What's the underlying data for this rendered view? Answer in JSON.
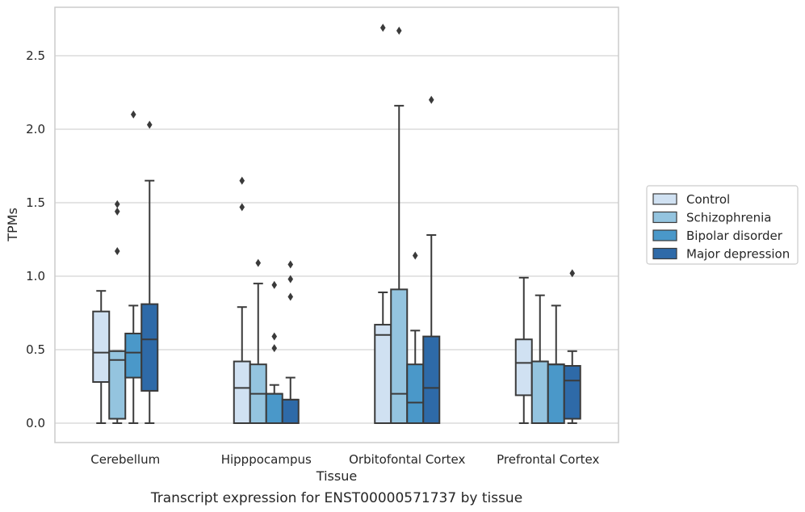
{
  "chart_data": {
    "type": "box",
    "xlabel": "Tissue",
    "ylabel": "TPMs",
    "caption": "Transcript expression for ENST00000571737 by tissue",
    "ylim": [
      -0.13,
      2.85
    ],
    "yticks": [
      "0.0",
      "0.5",
      "1.0",
      "1.5",
      "2.0",
      "2.5"
    ],
    "grid": "horizontal",
    "legend_position": "right",
    "categories": [
      "Cerebellum",
      "Hipppocampus",
      "Orbitofontal Cortex",
      "Prefrontal Cortex"
    ],
    "series": [
      {
        "name": "Control",
        "color": "#d0e1f2",
        "boxes": [
          {
            "whislo": 0.0,
            "q1": 0.28,
            "med": 0.48,
            "q3": 0.76,
            "whishi": 0.9,
            "fliers": []
          },
          {
            "whislo": 0.0,
            "q1": 0.0,
            "med": 0.24,
            "q3": 0.42,
            "whishi": 0.79,
            "fliers": [
              1.47,
              1.65
            ]
          },
          {
            "whislo": 0.0,
            "q1": 0.0,
            "med": 0.6,
            "q3": 0.67,
            "whishi": 0.89,
            "fliers": [
              2.69
            ]
          },
          {
            "whislo": 0.0,
            "q1": 0.19,
            "med": 0.41,
            "q3": 0.57,
            "whishi": 0.99,
            "fliers": []
          }
        ]
      },
      {
        "name": "Schizophrenia",
        "color": "#94c4df",
        "boxes": [
          {
            "whislo": 0.0,
            "q1": 0.03,
            "med": 0.43,
            "q3": 0.49,
            "whishi": 0.49,
            "fliers": [
              1.17,
              1.44,
              1.49
            ]
          },
          {
            "whislo": 0.0,
            "q1": 0.0,
            "med": 0.2,
            "q3": 0.4,
            "whishi": 0.95,
            "fliers": [
              1.09
            ]
          },
          {
            "whislo": 0.0,
            "q1": 0.0,
            "med": 0.2,
            "q3": 0.91,
            "whishi": 2.16,
            "fliers": [
              2.67
            ]
          },
          {
            "whislo": 0.0,
            "q1": 0.0,
            "med": 0.42,
            "q3": 0.42,
            "whishi": 0.87,
            "fliers": []
          }
        ]
      },
      {
        "name": "Bipolar disorder",
        "color": "#4a98c9",
        "boxes": [
          {
            "whislo": 0.0,
            "q1": 0.31,
            "med": 0.48,
            "q3": 0.61,
            "whishi": 0.8,
            "fliers": [
              2.1
            ]
          },
          {
            "whislo": 0.0,
            "q1": 0.0,
            "med": 0.2,
            "q3": 0.2,
            "whishi": 0.26,
            "fliers": [
              0.51,
              0.59,
              0.94
            ]
          },
          {
            "whislo": 0.0,
            "q1": 0.0,
            "med": 0.14,
            "q3": 0.4,
            "whishi": 0.63,
            "fliers": [
              1.14
            ]
          },
          {
            "whislo": 0.0,
            "q1": 0.0,
            "med": 0.4,
            "q3": 0.4,
            "whishi": 0.8,
            "fliers": []
          }
        ]
      },
      {
        "name": "Major depression",
        "color": "#2e6aa8",
        "boxes": [
          {
            "whislo": 0.0,
            "q1": 0.22,
            "med": 0.57,
            "q3": 0.81,
            "whishi": 1.65,
            "fliers": [
              2.03
            ]
          },
          {
            "whislo": 0.0,
            "q1": 0.0,
            "med": 0.16,
            "q3": 0.16,
            "whishi": 0.31,
            "fliers": [
              0.86,
              0.98,
              1.08
            ]
          },
          {
            "whislo": 0.0,
            "q1": 0.0,
            "med": 0.24,
            "q3": 0.59,
            "whishi": 1.28,
            "fliers": [
              2.2
            ]
          },
          {
            "whislo": 0.0,
            "q1": 0.03,
            "med": 0.29,
            "q3": 0.39,
            "whishi": 0.49,
            "fliers": [
              1.02
            ]
          }
        ]
      }
    ]
  }
}
